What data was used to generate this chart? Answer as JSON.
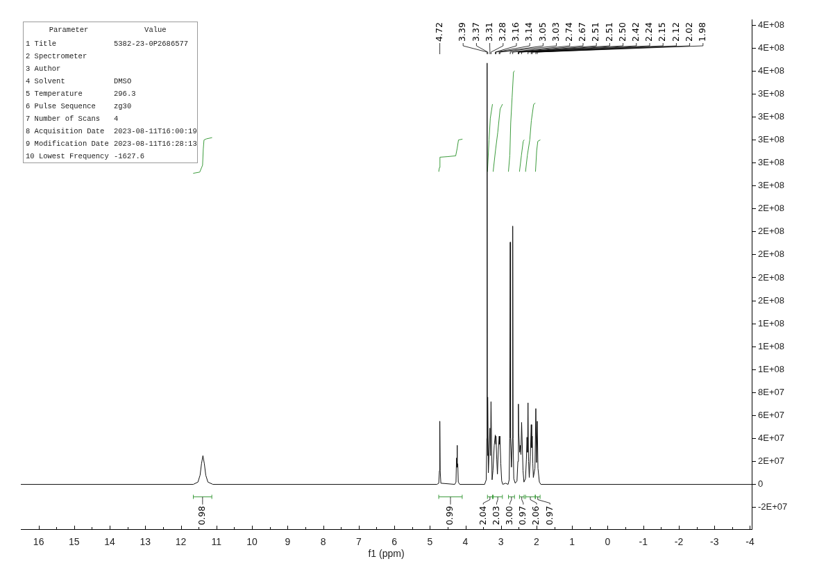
{
  "chart_data": [
    {
      "type": "line",
      "xlabel": "f1 (ppm)",
      "xlim": [
        16.5,
        -4.05
      ],
      "xticks": [
        16,
        {
          "value": 15.5,
          "label": null
        },
        15,
        {
          "value": 14.5,
          "label": null
        },
        14,
        {
          "value": 13.5,
          "label": null
        },
        13,
        {
          "value": 12.5,
          "label": null
        },
        12,
        {
          "value": 11.5,
          "label": null
        },
        11,
        {
          "value": 10.5,
          "label": null
        },
        10,
        {
          "value": 9.5,
          "label": null
        },
        9,
        {
          "value": 8.5,
          "label": null
        },
        8,
        {
          "value": 7.5,
          "label": null
        },
        7,
        {
          "value": 6.5,
          "label": null
        },
        6,
        {
          "value": 5.5,
          "label": null
        },
        5,
        {
          "value": 4.5,
          "label": null
        },
        4,
        {
          "value": 3.5,
          "label": null
        },
        3,
        {
          "value": 2.5,
          "label": null
        },
        2,
        {
          "value": 1.5,
          "label": null
        },
        1,
        {
          "value": 0.5,
          "label": null
        },
        0,
        {
          "value": -0.5,
          "label": null
        },
        -1,
        {
          "value": -1.5,
          "label": null
        },
        -2,
        {
          "value": -2.5,
          "label": null
        },
        -3,
        {
          "value": -3.5,
          "label": null
        },
        -4
      ],
      "ylim": [
        -39000000,
        405000000
      ],
      "yticks": [
        {
          "value": -20000000,
          "label": "-2E+07"
        },
        0,
        {
          "value": 20000000,
          "label": "2E+07"
        },
        {
          "value": 40000000,
          "label": "4E+07"
        },
        {
          "value": 60000000,
          "label": "6E+07"
        },
        {
          "value": 80000000,
          "label": "8E+07"
        },
        {
          "value": 100000000,
          "label": "1E+08"
        },
        {
          "value": 120000000,
          "label": "1E+08"
        },
        {
          "value": 140000000,
          "label": "1E+08"
        },
        {
          "value": 160000000,
          "label": "2E+08"
        },
        {
          "value": 180000000,
          "label": "2E+08"
        },
        {
          "value": 200000000,
          "label": "2E+08"
        },
        {
          "value": 220000000,
          "label": "2E+08"
        },
        {
          "value": 240000000,
          "label": "2E+08"
        },
        {
          "value": 260000000,
          "label": "3E+08"
        },
        {
          "value": 280000000,
          "label": "3E+08"
        },
        {
          "value": 300000000,
          "label": "3E+08"
        },
        {
          "value": 320000000,
          "label": "3E+08"
        },
        {
          "value": 340000000,
          "label": "3E+08"
        },
        {
          "value": 360000000,
          "label": "4E+08"
        },
        {
          "value": 380000000,
          "label": "4E+08"
        },
        {
          "value": 400000000,
          "label": "4E+08"
        }
      ],
      "series": [
        {
          "color": "#111111",
          "x": [
            16.5,
            11.65,
            11.52,
            11.46,
            11.42,
            11.38,
            11.34,
            11.3,
            11.24,
            11.1,
            4.8,
            4.75,
            4.73,
            4.72,
            4.71,
            4.69,
            4.3,
            4.265,
            4.25,
            4.242,
            4.234,
            4.226,
            4.215,
            4.2,
            4.16,
            3.46,
            3.415,
            3.398,
            3.39,
            3.383,
            3.377,
            3.37,
            3.355,
            3.31,
            3.295,
            3.28,
            3.25,
            3.225,
            3.19,
            3.16,
            3.15,
            3.14,
            3.12,
            3.1,
            3.075,
            3.05,
            3.04,
            3.03,
            3.005,
            2.98,
            2.95,
            2.87,
            2.8,
            2.77,
            2.755,
            2.74,
            2.73,
            2.705,
            2.68,
            2.67,
            2.66,
            2.64,
            2.6,
            2.55,
            2.525,
            2.51,
            2.5,
            2.475,
            2.455,
            2.44,
            2.42,
            2.4,
            2.38,
            2.355,
            2.31,
            2.285,
            2.269,
            2.255,
            2.24,
            2.225,
            2.205,
            2.175,
            2.15,
            2.137,
            2.12,
            2.105,
            2.09,
            2.045,
            2.02,
            2.0,
            1.98,
            1.96,
            1.92,
            1.88,
            -4.05
          ],
          "values": [
            0,
            0,
            2000000,
            8000000,
            18000000,
            25000000,
            18000000,
            8000000,
            2000000,
            0,
            0,
            1000000,
            12000000,
            55000000,
            12000000,
            1000000,
            0,
            2000000,
            23000000,
            15000000,
            34000000,
            15000000,
            18000000,
            2000000,
            0,
            0,
            4000000,
            40000000,
            367000000,
            40000000,
            25000000,
            76000000,
            10000000,
            49000000,
            25000000,
            72000000,
            4000000,
            12000000,
            34000000,
            43000000,
            35000000,
            42000000,
            22000000,
            9000000,
            30000000,
            42000000,
            35000000,
            42000000,
            18000000,
            3000000,
            0,
            1000000,
            0,
            4000000,
            40000000,
            211000000,
            40000000,
            15000000,
            40000000,
            225000000,
            40000000,
            5000000,
            1000000,
            3000000,
            20000000,
            70000000,
            45000000,
            28000000,
            34000000,
            26000000,
            54000000,
            33000000,
            12000000,
            2000000,
            5000000,
            22000000,
            41000000,
            28000000,
            71000000,
            20000000,
            6000000,
            24000000,
            52000000,
            32000000,
            42000000,
            18000000,
            6000000,
            14000000,
            66000000,
            19000000,
            55000000,
            14000000,
            2000000,
            0,
            0
          ]
        },
        {
          "color": "#3c9c3c",
          "x": [
            11.65,
            11.47,
            11.39,
            11.37,
            11.35,
            11.28,
            11.13
          ],
          "values": [
            271000000,
            272000000,
            278000000,
            292000000,
            300000000,
            301000000,
            302000000
          ]
        },
        {
          "color": "#3c9c3c",
          "x": [
            4.75,
            4.73,
            4.716,
            4.5,
            4.273,
            4.23,
            4.195,
            4.09
          ],
          "values": [
            272500000,
            276000000,
            285000000,
            285500000,
            286200000,
            293000000,
            300000000,
            300700000
          ]
        },
        {
          "color": "#3c9c3c",
          "x": [
            3.38,
            3.336,
            3.3,
            3.24
          ],
          "values": [
            272500000,
            300000000,
            319000000,
            331000000
          ]
        },
        {
          "color": "#3c9c3c",
          "x": [
            3.22,
            3.155,
            3.09,
            3.024,
            2.96
          ],
          "values": [
            272500000,
            290700000,
            306800000,
            327000000,
            331000000
          ]
        },
        {
          "color": "#3c9c3c",
          "x": [
            2.79,
            2.751,
            2.726,
            2.687,
            2.648,
            2.62
          ],
          "values": [
            272500000,
            286700000,
            314900000,
            337100000,
            359300000,
            360000000
          ]
        },
        {
          "color": "#3c9c3c",
          "x": [
            2.48,
            2.425,
            2.375,
            2.35
          ],
          "values": [
            272500000,
            286700000,
            298800000,
            300000000
          ]
        },
        {
          "color": "#3c9c3c",
          "x": [
            2.31,
            2.258,
            2.191,
            2.146,
            2.082,
            2.04
          ],
          "values": [
            272500000,
            286700000,
            300000000,
            316900000,
            331000000,
            332000000
          ]
        },
        {
          "color": "#3c9c3c",
          "x": [
            2.03,
            1.996,
            1.965,
            1.9
          ],
          "values": [
            272500000,
            290700000,
            298800000,
            300000000
          ]
        }
      ],
      "annotations": [
        {
          "text": "4.72",
          "x": 4.72
        },
        {
          "text": "3.39",
          "x": 3.39
        },
        {
          "text": "3.37",
          "x": 3.37
        },
        {
          "text": "3.31",
          "x": 3.31
        },
        {
          "text": "3.28",
          "x": 3.28
        },
        {
          "text": "3.16",
          "x": 3.16
        },
        {
          "text": "3.14",
          "x": 3.14
        },
        {
          "text": "3.05",
          "x": 3.05
        },
        {
          "text": "3.03",
          "x": 3.03
        },
        {
          "text": "2.74",
          "x": 2.74
        },
        {
          "text": "2.67",
          "x": 2.67
        },
        {
          "text": "2.51",
          "x": 2.51
        },
        {
          "text": "2.51",
          "x": 2.51
        },
        {
          "text": "2.50",
          "x": 2.5
        },
        {
          "text": "2.42",
          "x": 2.42
        },
        {
          "text": "2.24",
          "x": 2.24
        },
        {
          "text": "2.15",
          "x": 2.15
        },
        {
          "text": "2.12",
          "x": 2.12
        },
        {
          "text": "2.02",
          "x": 2.02
        },
        {
          "text": "1.98",
          "x": 1.98
        },
        "0.98",
        "0.99",
        "2.04",
        "2.03",
        "3.00",
        "0.97",
        "2.06",
        "0.97"
      ]
    },
    {
      "type": "other",
      "categories": [
        "Parameter",
        "Value"
      ],
      "y_categories": [
        "1 Title",
        "2 Spectrometer",
        "3 Author",
        "4 Solvent",
        "5 Temperature",
        "6 Pulse Sequence",
        "7 Number of Scans",
        "8 Acquisition Date",
        "9 Modification Date",
        "10 Lowest Frequency"
      ],
      "cell_labels": [
        [
          "5382-23-0P2686577"
        ],
        [
          null
        ],
        [
          null
        ],
        [
          "DMSO"
        ],
        [
          "296.3"
        ],
        [
          "zg30"
        ],
        [
          "4"
        ],
        [
          "2023-08-11T16:00:19"
        ],
        [
          "2023-08-11T16:28:13"
        ],
        [
          "-1627.6"
        ]
      ]
    }
  ]
}
